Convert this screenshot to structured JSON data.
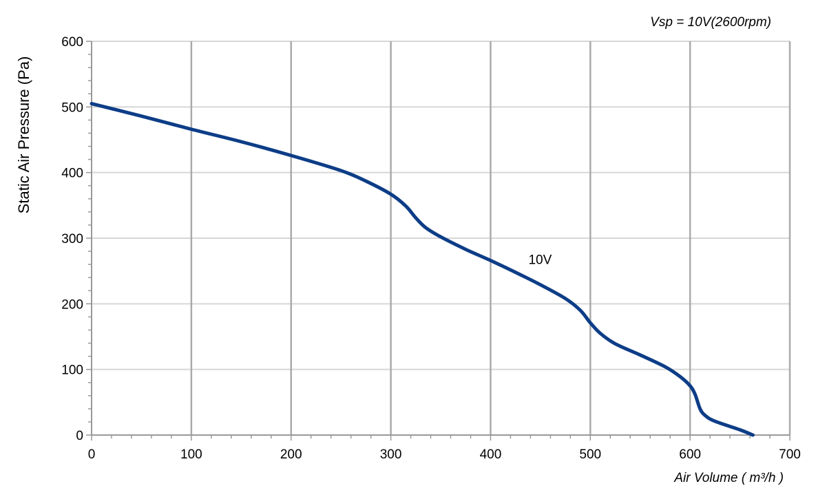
{
  "chart_data": {
    "type": "line",
    "title": "Vsp = 10V(2600rpm)",
    "xlabel": "Air Volume ( m³/h )",
    "ylabel": "Static Air Pressure  (Pa)",
    "xlim": [
      0,
      700
    ],
    "ylim": [
      0,
      600
    ],
    "xticks": [
      0,
      100,
      200,
      300,
      400,
      500,
      600,
      700
    ],
    "yticks": [
      0,
      100,
      200,
      300,
      400,
      500,
      600
    ],
    "grid": true,
    "colors": {
      "series": "#0d3d87",
      "grid_major": "#aaaaaa",
      "grid_minor": "#d6d6d6",
      "axis": "#999999"
    },
    "series": [
      {
        "name": "10V",
        "x": [
          0,
          50,
          100,
          150,
          200,
          250,
          275,
          300,
          315,
          325,
          335,
          350,
          375,
          400,
          425,
          450,
          475,
          490,
          500,
          510,
          525,
          550,
          575,
          590,
          600,
          605,
          610,
          615,
          625,
          650,
          663
        ],
        "y": [
          505,
          486,
          466,
          447,
          426,
          403,
          387,
          367,
          349,
          331,
          316,
          302,
          283,
          266,
          248,
          229,
          208,
          190,
          171,
          155,
          139,
          122,
          104,
          89,
          75,
          62,
          40,
          30,
          21,
          8,
          0
        ]
      }
    ],
    "annotations": [
      {
        "text": "10V",
        "x": 438,
        "y": 268
      }
    ]
  }
}
